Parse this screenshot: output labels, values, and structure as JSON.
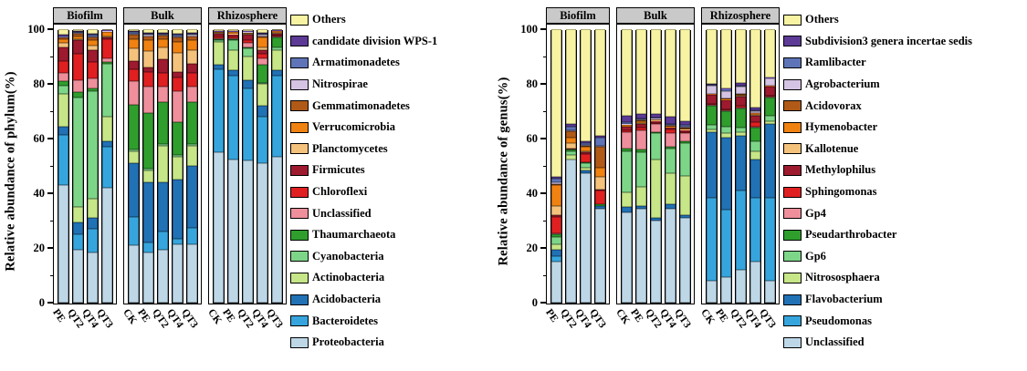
{
  "chart_data": [
    {
      "id": "phylum",
      "type": "bar",
      "stacked": true,
      "orientation": "vertical",
      "ylabel": "Relative abundance of phylum(%)",
      "ylim": [
        0,
        100
      ],
      "yticks": [
        0,
        20,
        40,
        60,
        80,
        100
      ],
      "yticks_minor": [
        10,
        30,
        50,
        70,
        90
      ],
      "grid": false,
      "legend_position": "right-of-plot",
      "legend_top_to_bottom": [
        "Others",
        "candidate division WPS-1",
        "Armatimonadetes",
        "Nitrospirae",
        "Gemmatimonadetes",
        "Verrucomicrobia",
        "Planctomycetes",
        "Firmicutes",
        "Chloroflexi",
        "Unclassified",
        "Thaumarchaeota",
        "Cyanobacteria",
        "Actinobacteria",
        "Acidobacteria",
        "Bacteroidetes",
        "Proteobacteria"
      ],
      "series_bottom_to_top": [
        "Proteobacteria",
        "Bacteroidetes",
        "Acidobacteria",
        "Actinobacteria",
        "Cyanobacteria",
        "Thaumarchaeota",
        "Unclassified",
        "Chloroflexi",
        "Firmicutes",
        "Planctomycetes",
        "Verrucomicrobia",
        "Gemmatimonadetes",
        "Nitrospirae",
        "Armatimonadetes",
        "candidate division WPS-1",
        "Others"
      ],
      "colors": {
        "Proteobacteria": "#bdd7e7",
        "Bacteroidetes": "#36a5dd",
        "Acidobacteria": "#2171b5",
        "Actinobacteria": "#c6e687",
        "Cyanobacteria": "#7dd688",
        "Thaumarchaeota": "#2f9e2d",
        "Unclassified": "#ee8f9b",
        "Chloroflexi": "#e01f21",
        "Firmicutes": "#9e1a2e",
        "Planctomycetes": "#f5c27c",
        "Verrucomicrobia": "#f08211",
        "Gemmatimonadetes": "#b15a17",
        "Nitrospirae": "#d5c3e3",
        "Armatimonadetes": "#5f74b8",
        "candidate division WPS-1": "#5c3a96",
        "Others": "#f7f3a3"
      },
      "groups": [
        {
          "label": "Biofilm",
          "bars": [
            {
              "label": "PE",
              "values": [
                43,
                18.5,
                3,
                12,
                3,
                1.5,
                3,
                4.5,
                5,
                1.5,
                1.5,
                0.5,
                0.3,
                0.2,
                0.5,
                2
              ]
            },
            {
              "label": "QT2",
              "values": [
                19.5,
                5.5,
                4.5,
                5.5,
                40,
                2,
                4.5,
                9.5,
                5,
                0.5,
                1,
                1,
                0.3,
                0.2,
                0.3,
                0.7
              ]
            },
            {
              "label": "QT4",
              "values": [
                18.5,
                8.5,
                4,
                7,
                39.5,
                1,
                3.5,
                6,
                4.5,
                1.5,
                2,
                1,
                0.5,
                0.5,
                0.5,
                1.5
              ]
            },
            {
              "label": "QT3",
              "values": [
                42,
                15,
                2,
                9,
                19.5,
                0.5,
                1.5,
                7,
                0.5,
                0.5,
                1.4,
                0.3,
                0.2,
                0.2,
                0.2,
                0.2
              ]
            }
          ]
        },
        {
          "label": "Bulk",
          "bars": [
            {
              "label": "CK",
              "values": [
                21,
                10.5,
                19.5,
                4.5,
                0.5,
                16.5,
                8.5,
                4.5,
                3,
                4.5,
                3.5,
                1.5,
                0.5,
                0.5,
                0.3,
                0.7
              ]
            },
            {
              "label": "PE",
              "values": [
                18.5,
                3.5,
                22,
                4.5,
                0.5,
                20.5,
                9.5,
                5.5,
                1.5,
                6,
                4,
                1.5,
                0.5,
                0.5,
                0.3,
                1.2
              ]
            },
            {
              "label": "QT2",
              "values": [
                19.5,
                6.5,
                18,
                13.5,
                0.5,
                15.5,
                5.5,
                5,
                5,
                4.5,
                3,
                1.2,
                0.4,
                0.4,
                0.3,
                1.2
              ]
            },
            {
              "label": "QT4",
              "values": [
                21.5,
                2,
                21.5,
                8.5,
                0.5,
                12,
                11.5,
                5,
                2,
                7,
                4,
                1.5,
                0.5,
                0.5,
                0.5,
                1.5
              ]
            },
            {
              "label": "QT3",
              "values": [
                21.5,
                6,
                22.5,
                7.5,
                0.5,
                15.5,
                5.5,
                5,
                3.5,
                5,
                3.5,
                1.5,
                0.5,
                0.5,
                0.3,
                1.2
              ]
            }
          ]
        },
        {
          "label": "Rhizosphere",
          "bars": [
            {
              "label": "CK",
              "values": [
                55,
                30.5,
                1.5,
                8.5,
                0.5,
                0.5,
                0.3,
                0.4,
                1.3,
                0.2,
                0.3,
                0.2,
                0.1,
                0.1,
                0.1,
                0.5
              ]
            },
            {
              "label": "PE",
              "values": [
                52.5,
                30.5,
                2,
                7.5,
                3.5,
                0.3,
                0.4,
                0.5,
                1,
                0.3,
                0.4,
                0.2,
                0.1,
                0.1,
                0.1,
                0.6
              ]
            },
            {
              "label": "QT2",
              "values": [
                52,
                26.5,
                3,
                8.5,
                3,
                0.5,
                1.5,
                1,
                2,
                0.3,
                0.4,
                0.3,
                0.1,
                0.1,
                0.3,
                0.5
              ]
            },
            {
              "label": "QT4",
              "values": [
                51,
                17,
                4,
                8,
                0.5,
                6.5,
                2.5,
                1.5,
                1.5,
                1,
                3.5,
                0.5,
                0.5,
                0.5,
                0.3,
                1.2
              ]
            },
            {
              "label": "QT3",
              "values": [
                53.5,
                29.5,
                2,
                7.5,
                1,
                3.5,
                0.3,
                0.4,
                0.8,
                0.2,
                0.6,
                0.2,
                0.1,
                0.1,
                0.1,
                0.2
              ]
            }
          ]
        }
      ]
    },
    {
      "id": "genus",
      "type": "bar",
      "stacked": true,
      "orientation": "vertical",
      "ylabel": "Relative abundance of genus(%)",
      "ylim": [
        0,
        100
      ],
      "yticks": [
        0,
        20,
        40,
        60,
        80,
        100
      ],
      "yticks_minor": [
        10,
        30,
        50,
        70,
        90
      ],
      "grid": false,
      "legend_position": "right-of-plot",
      "legend_top_to_bottom": [
        "Others",
        "Subdivision3 genera incertae sedis",
        "Ramlibacter",
        "Agrobacterium",
        "Acidovorax",
        "Hymenobacter",
        "Kallotenue",
        "Methylophilus",
        "Sphingomonas",
        "Gp4",
        "Pseudarthrobacter",
        "Gp6",
        "Nitrososphaera",
        "Flavobacterium",
        "Pseudomonas",
        "Unclassified"
      ],
      "series_bottom_to_top": [
        "Unclassified",
        "Pseudomonas",
        "Flavobacterium",
        "Nitrososphaera",
        "Gp6",
        "Pseudarthrobacter",
        "Gp4",
        "Sphingomonas",
        "Methylophilus",
        "Kallotenue",
        "Hymenobacter",
        "Acidovorax",
        "Agrobacterium",
        "Ramlibacter",
        "Subdivision3 genera incertae sedis",
        "Others"
      ],
      "colors": {
        "Unclassified": "#bdd7e7",
        "Pseudomonas": "#36a5dd",
        "Flavobacterium": "#2171b5",
        "Nitrososphaera": "#c6e687",
        "Gp6": "#7dd688",
        "Pseudarthrobacter": "#2f9e2d",
        "Gp4": "#ee8f9b",
        "Sphingomonas": "#e01f21",
        "Methylophilus": "#9e1a2e",
        "Kallotenue": "#f5c27c",
        "Hymenobacter": "#f08211",
        "Acidovorax": "#b15a17",
        "Agrobacterium": "#d5c3e3",
        "Ramlibacter": "#5f74b8",
        "Subdivision3 genera incertae sedis": "#5c3a96",
        "Others": "#f7f3a3"
      },
      "groups": [
        {
          "label": "Biofilm",
          "bars": [
            {
              "label": "PE",
              "values": [
                15,
                2,
                2.5,
                2,
                2.5,
                1,
                0.5,
                6,
                0.5,
                3.5,
                7.5,
                0.5,
                0.5,
                1.5,
                0.5,
                54
              ]
            },
            {
              "label": "QT2",
              "values": [
                52.5,
                0,
                0,
                1.5,
                1.5,
                0.5,
                0,
                0,
                0.3,
                2,
                2,
                2.5,
                0.2,
                1.5,
                1,
                34.5
              ]
            },
            {
              "label": "QT4",
              "values": [
                47.5,
                0,
                1,
                1,
                1.5,
                0.5,
                0,
                3,
                0.5,
                0.5,
                1.5,
                0.5,
                0.3,
                0.7,
                0.5,
                41
              ]
            },
            {
              "label": "QT3",
              "values": [
                34.5,
                0,
                1,
                0,
                0,
                0.5,
                0,
                5,
                0.5,
                4.5,
                3.5,
                7.5,
                0.5,
                3,
                0.5,
                39
              ]
            }
          ]
        },
        {
          "label": "Bulk",
          "bars": [
            {
              "label": "CK",
              "values": [
                33,
                0,
                2,
                5.5,
                15,
                1,
                6,
                0.5,
                1.5,
                0,
                0.5,
                0.3,
                0.2,
                0.5,
                2.5,
                31.5
              ]
            },
            {
              "label": "PE",
              "values": [
                34.5,
                0,
                1,
                7,
                12.5,
                1,
                7,
                1,
                1.5,
                0.3,
                0.7,
                0.3,
                0.2,
                0.5,
                1.5,
                31
              ]
            },
            {
              "label": "QT2",
              "values": [
                30,
                0,
                1,
                21.5,
                9.5,
                0.5,
                3,
                0.3,
                0.8,
                0.2,
                0.2,
                0.2,
                0.1,
                0.4,
                1.3,
                31
              ]
            },
            {
              "label": "QT4",
              "values": [
                34.5,
                0,
                1.5,
                11.5,
                9,
                0.5,
                5,
                1.5,
                0.5,
                0.2,
                0.3,
                0.2,
                0.3,
                0.5,
                2.5,
                32
              ]
            },
            {
              "label": "QT3",
              "values": [
                31,
                0,
                1,
                14.5,
                12,
                0.5,
                3,
                0.3,
                1,
                0.2,
                0.3,
                0.2,
                0.2,
                0.8,
                1.5,
                33.5
              ]
            }
          ]
        },
        {
          "label": "Rhizosphere",
          "bars": [
            {
              "label": "CK",
              "values": [
                8,
                30.5,
                24,
                1,
                1.5,
                7,
                0.3,
                0.4,
                3.3,
                0,
                0.3,
                0.2,
                3,
                0.3,
                0.2,
                20
              ]
            },
            {
              "label": "PE",
              "values": [
                9.5,
                24.5,
                26.5,
                1.5,
                2.5,
                5.5,
                0.3,
                0.4,
                3.3,
                0.2,
                0.3,
                0.2,
                2.5,
                1,
                0.3,
                21.5
              ]
            },
            {
              "label": "QT2",
              "values": [
                12,
                29,
                20,
                1.5,
                1.5,
                7,
                0.3,
                0.7,
                3.5,
                0.2,
                0.3,
                0.2,
                2.8,
                0.5,
                1,
                19.5
              ]
            },
            {
              "label": "QT4",
              "values": [
                15,
                23.5,
                14,
                3,
                3.5,
                5,
                0.5,
                1.5,
                2.5,
                0.3,
                0.4,
                0.3,
                0.5,
                0.5,
                1,
                28.5
              ]
            },
            {
              "label": "QT3",
              "values": [
                8,
                30.5,
                27,
                1,
                2,
                6.5,
                0.3,
                0.4,
                3.3,
                0,
                0.3,
                0.2,
                2.5,
                0.3,
                0.2,
                17.5
              ]
            }
          ]
        }
      ]
    }
  ]
}
